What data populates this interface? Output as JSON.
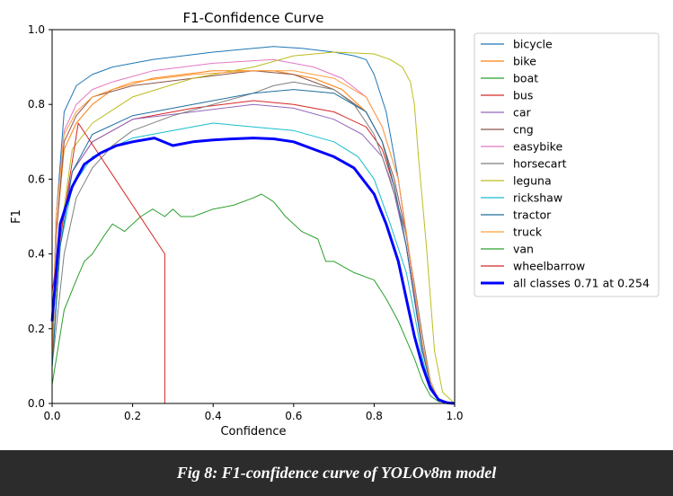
{
  "caption": "Fig 8: F1-confidence curve of YOLOv8m model",
  "chart_data": {
    "type": "line",
    "title": "F1-Confidence Curve",
    "xlabel": "Confidence",
    "ylabel": "F1",
    "xlim": [
      0,
      1
    ],
    "ylim": [
      0,
      1
    ],
    "xticks": [
      "0.0",
      "0.2",
      "0.4",
      "0.6",
      "0.8",
      "1.0"
    ],
    "yticks": [
      "0.0",
      "0.2",
      "0.4",
      "0.6",
      "0.8",
      "1.0"
    ],
    "grid": false,
    "legend_position": "outside-right",
    "series": [
      {
        "name": "bicycle",
        "color": "#1f77b4",
        "width": 1,
        "x": [
          0,
          0.01,
          0.03,
          0.06,
          0.1,
          0.15,
          0.25,
          0.4,
          0.55,
          0.62,
          0.7,
          0.75,
          0.78,
          0.8,
          0.83,
          0.86,
          0.88,
          0.9,
          0.92,
          0.94,
          0.96,
          1.0
        ],
        "y": [
          0.15,
          0.5,
          0.78,
          0.85,
          0.88,
          0.9,
          0.92,
          0.94,
          0.955,
          0.95,
          0.94,
          0.93,
          0.92,
          0.88,
          0.78,
          0.6,
          0.45,
          0.3,
          0.15,
          0.05,
          0.01,
          0
        ]
      },
      {
        "name": "bike",
        "color": "#ff7f0e",
        "width": 1,
        "x": [
          0,
          0.01,
          0.03,
          0.06,
          0.1,
          0.15,
          0.25,
          0.4,
          0.55,
          0.65,
          0.72,
          0.78,
          0.82,
          0.85,
          0.88,
          0.9,
          0.92,
          0.94,
          0.96,
          1.0
        ],
        "y": [
          0.1,
          0.45,
          0.68,
          0.75,
          0.8,
          0.84,
          0.87,
          0.89,
          0.89,
          0.87,
          0.84,
          0.78,
          0.7,
          0.58,
          0.42,
          0.28,
          0.14,
          0.05,
          0.01,
          0
        ]
      },
      {
        "name": "boat",
        "color": "#2ca02c",
        "width": 1,
        "x": [
          0,
          0.28,
          1.0
        ],
        "y": [
          0,
          0,
          0
        ]
      },
      {
        "name": "bus",
        "color": "#d62728",
        "width": 1,
        "x": [
          0,
          0.02,
          0.05,
          0.1,
          0.2,
          0.35,
          0.5,
          0.6,
          0.7,
          0.78,
          0.82,
          0.85,
          0.88,
          0.9,
          0.92,
          0.94,
          0.96,
          1.0
        ],
        "y": [
          0.1,
          0.45,
          0.62,
          0.7,
          0.76,
          0.79,
          0.81,
          0.8,
          0.78,
          0.74,
          0.68,
          0.58,
          0.42,
          0.28,
          0.14,
          0.05,
          0.01,
          0
        ]
      },
      {
        "name": "car",
        "color": "#9467bd",
        "width": 1,
        "x": [
          0,
          0.02,
          0.05,
          0.1,
          0.2,
          0.35,
          0.5,
          0.6,
          0.7,
          0.77,
          0.82,
          0.85,
          0.88,
          0.9,
          0.92,
          0.94,
          0.96,
          1.0
        ],
        "y": [
          0.1,
          0.45,
          0.62,
          0.7,
          0.76,
          0.78,
          0.8,
          0.79,
          0.76,
          0.72,
          0.66,
          0.56,
          0.42,
          0.28,
          0.14,
          0.05,
          0.01,
          0
        ]
      },
      {
        "name": "cng",
        "color": "#8c564b",
        "width": 1,
        "x": [
          0,
          0.01,
          0.03,
          0.06,
          0.1,
          0.2,
          0.35,
          0.5,
          0.6,
          0.7,
          0.78,
          0.82,
          0.85,
          0.88,
          0.9,
          0.92,
          0.94,
          0.96,
          1.0
        ],
        "y": [
          0.1,
          0.45,
          0.7,
          0.77,
          0.82,
          0.85,
          0.87,
          0.89,
          0.88,
          0.84,
          0.78,
          0.7,
          0.6,
          0.45,
          0.3,
          0.15,
          0.05,
          0.01,
          0
        ]
      },
      {
        "name": "easybike",
        "color": "#e377c2",
        "width": 1,
        "x": [
          0,
          0.01,
          0.03,
          0.06,
          0.1,
          0.15,
          0.25,
          0.4,
          0.55,
          0.65,
          0.72,
          0.78,
          0.82,
          0.86,
          0.88,
          0.9,
          0.92,
          0.94,
          0.96,
          1.0
        ],
        "y": [
          0.12,
          0.5,
          0.73,
          0.8,
          0.84,
          0.86,
          0.89,
          0.91,
          0.92,
          0.9,
          0.87,
          0.82,
          0.74,
          0.6,
          0.45,
          0.3,
          0.15,
          0.05,
          0.01,
          0
        ]
      },
      {
        "name": "horsecart",
        "color": "#7f7f7f",
        "width": 1,
        "x": [
          0,
          0.03,
          0.06,
          0.1,
          0.15,
          0.2,
          0.3,
          0.4,
          0.5,
          0.55,
          0.6,
          0.65,
          0.7,
          0.75,
          0.8,
          0.84,
          0.88,
          0.9,
          0.92,
          0.94,
          0.96,
          1.0
        ],
        "y": [
          0.1,
          0.4,
          0.55,
          0.63,
          0.69,
          0.73,
          0.77,
          0.8,
          0.83,
          0.85,
          0.86,
          0.85,
          0.84,
          0.8,
          0.72,
          0.6,
          0.45,
          0.32,
          0.18,
          0.06,
          0.01,
          0
        ]
      },
      {
        "name": "leguna",
        "color": "#bcbd22",
        "width": 1,
        "x": [
          0,
          0.02,
          0.05,
          0.1,
          0.2,
          0.35,
          0.5,
          0.6,
          0.7,
          0.8,
          0.84,
          0.87,
          0.89,
          0.9,
          0.91,
          0.93,
          0.95,
          0.97,
          1.0
        ],
        "y": [
          0.1,
          0.45,
          0.68,
          0.75,
          0.82,
          0.87,
          0.9,
          0.93,
          0.94,
          0.935,
          0.92,
          0.9,
          0.86,
          0.8,
          0.66,
          0.42,
          0.14,
          0.03,
          0
        ]
      },
      {
        "name": "rickshaw",
        "color": "#17becf",
        "width": 1,
        "x": [
          0,
          0.02,
          0.05,
          0.1,
          0.2,
          0.3,
          0.4,
          0.5,
          0.6,
          0.7,
          0.76,
          0.8,
          0.84,
          0.88,
          0.9,
          0.92,
          0.94,
          0.96,
          1.0
        ],
        "y": [
          0.1,
          0.42,
          0.58,
          0.66,
          0.71,
          0.73,
          0.75,
          0.74,
          0.73,
          0.7,
          0.66,
          0.6,
          0.48,
          0.35,
          0.24,
          0.12,
          0.04,
          0.01,
          0
        ]
      },
      {
        "name": "tractor",
        "color": "#1f6f9f",
        "width": 1,
        "x": [
          0,
          0.02,
          0.05,
          0.1,
          0.2,
          0.3,
          0.4,
          0.5,
          0.6,
          0.7,
          0.78,
          0.82,
          0.85,
          0.88,
          0.9,
          0.92,
          0.94,
          0.96,
          1.0
        ],
        "y": [
          0.1,
          0.42,
          0.62,
          0.72,
          0.77,
          0.79,
          0.81,
          0.83,
          0.84,
          0.83,
          0.78,
          0.7,
          0.58,
          0.42,
          0.28,
          0.14,
          0.05,
          0.01,
          0
        ]
      },
      {
        "name": "truck",
        "color": "#ff9f3e",
        "width": 1,
        "x": [
          0,
          0.01,
          0.03,
          0.06,
          0.1,
          0.2,
          0.35,
          0.5,
          0.6,
          0.7,
          0.78,
          0.82,
          0.86,
          0.88,
          0.9,
          0.92,
          0.94,
          0.96,
          1.0
        ],
        "y": [
          0.12,
          0.5,
          0.72,
          0.78,
          0.82,
          0.86,
          0.88,
          0.89,
          0.89,
          0.87,
          0.82,
          0.74,
          0.6,
          0.46,
          0.31,
          0.16,
          0.06,
          0.01,
          0
        ]
      },
      {
        "name": "van",
        "color": "#2ca02c",
        "width": 1,
        "x": [
          0,
          0.03,
          0.06,
          0.08,
          0.1,
          0.13,
          0.15,
          0.18,
          0.2,
          0.22,
          0.25,
          0.28,
          0.3,
          0.32,
          0.35,
          0.4,
          0.45,
          0.5,
          0.52,
          0.55,
          0.58,
          0.62,
          0.66,
          0.68,
          0.7,
          0.75,
          0.8,
          0.83,
          0.86,
          0.9,
          0.92,
          0.94,
          0.96,
          1.0
        ],
        "y": [
          0.05,
          0.25,
          0.33,
          0.38,
          0.4,
          0.45,
          0.48,
          0.46,
          0.48,
          0.5,
          0.52,
          0.5,
          0.52,
          0.5,
          0.5,
          0.52,
          0.53,
          0.55,
          0.56,
          0.54,
          0.5,
          0.46,
          0.44,
          0.38,
          0.38,
          0.35,
          0.33,
          0.28,
          0.22,
          0.12,
          0.06,
          0.02,
          0.005,
          0
        ]
      },
      {
        "name": "wheelbarrow",
        "color": "#d62728",
        "width": 1,
        "x": [
          0,
          0.065,
          0.28,
          0.28,
          0.28
        ],
        "y": [
          0.3,
          0.75,
          0.4,
          0.4,
          0
        ]
      },
      {
        "name": "all classes 0.71 at 0.254",
        "color": "#0000ff",
        "width": 3,
        "x": [
          0,
          0.02,
          0.05,
          0.08,
          0.12,
          0.16,
          0.2,
          0.254,
          0.3,
          0.35,
          0.4,
          0.45,
          0.5,
          0.55,
          0.6,
          0.65,
          0.7,
          0.75,
          0.8,
          0.83,
          0.86,
          0.88,
          0.9,
          0.92,
          0.94,
          0.96,
          0.98,
          1.0
        ],
        "y": [
          0.22,
          0.48,
          0.58,
          0.64,
          0.67,
          0.69,
          0.7,
          0.71,
          0.69,
          0.7,
          0.705,
          0.708,
          0.71,
          0.708,
          0.7,
          0.68,
          0.66,
          0.63,
          0.56,
          0.48,
          0.38,
          0.28,
          0.18,
          0.1,
          0.04,
          0.01,
          0.002,
          0
        ]
      }
    ]
  }
}
